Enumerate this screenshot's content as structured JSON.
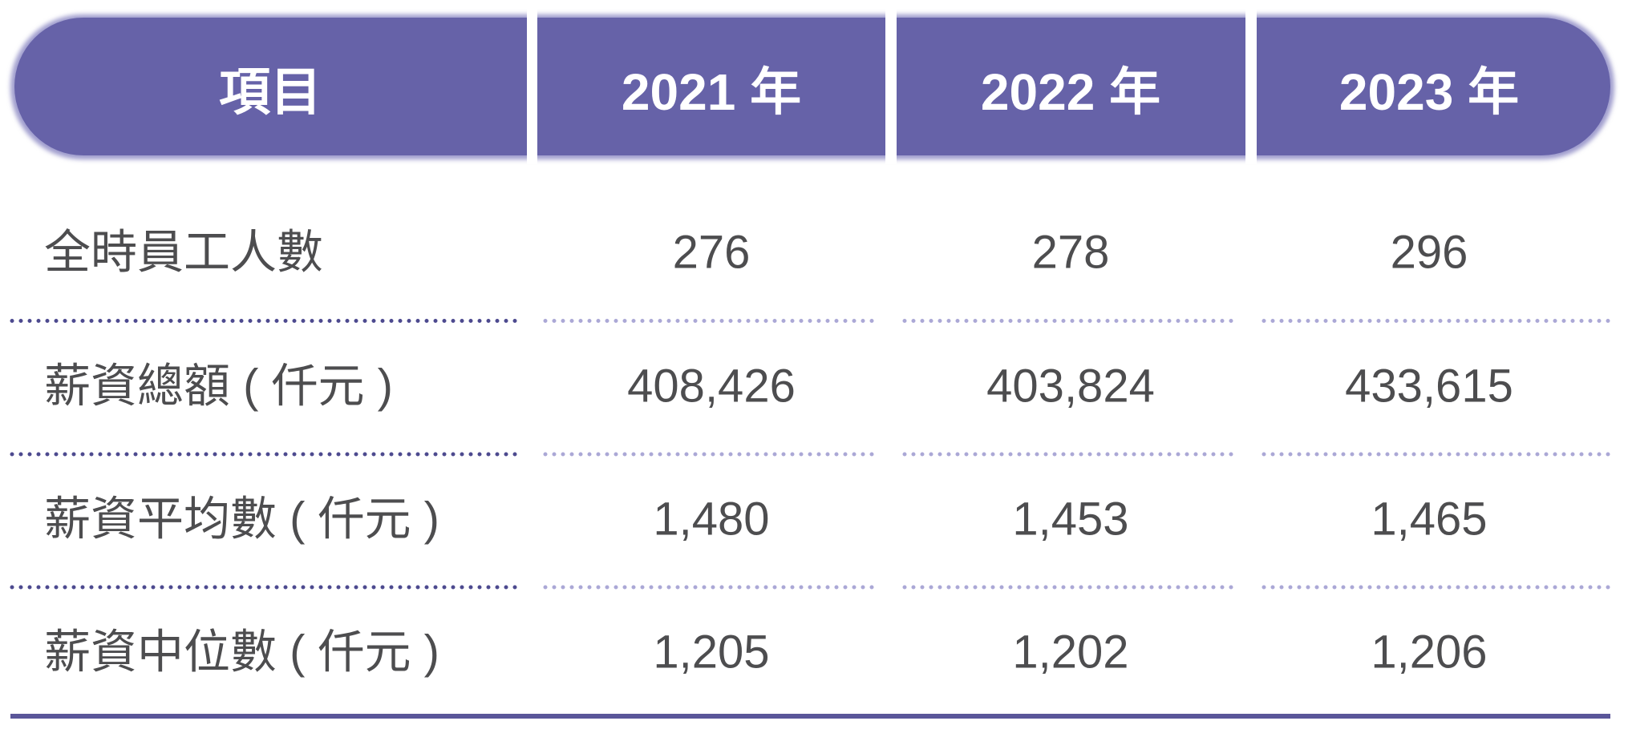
{
  "table": {
    "header": [
      "項目",
      "2021 年",
      "2022 年",
      "2023 年"
    ],
    "rows": [
      [
        "全時員工人數",
        "276",
        "278",
        "296"
      ],
      [
        "薪資總額 ( 仟元 )",
        "408,426",
        "403,824",
        "433,615"
      ],
      [
        "薪資平均數 ( 仟元 )",
        "1,480",
        "1,453",
        "1,465"
      ],
      [
        "薪資中位數 ( 仟元 )",
        "1,205",
        "1,202",
        "1,206"
      ]
    ]
  }
}
